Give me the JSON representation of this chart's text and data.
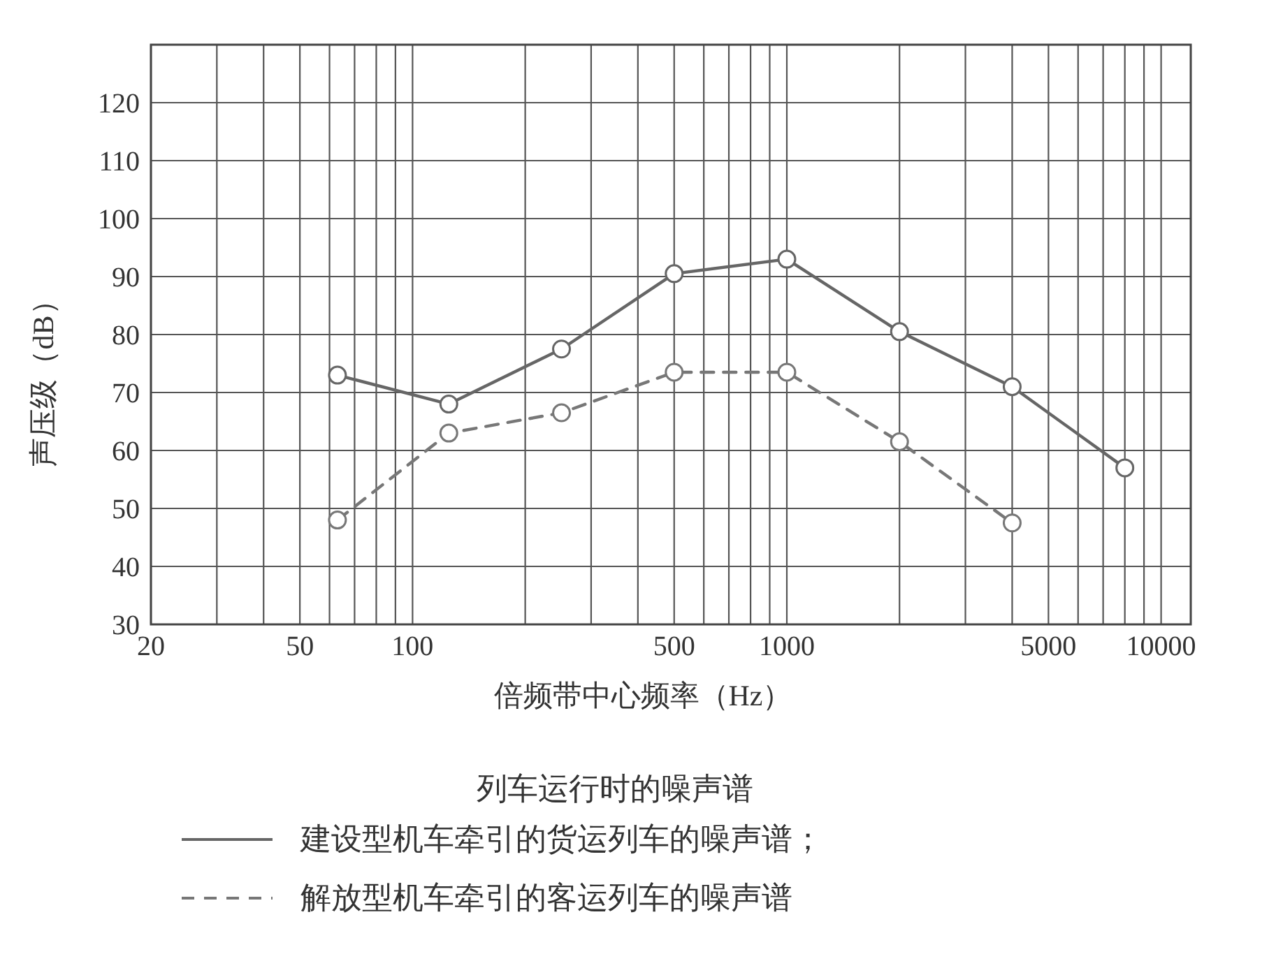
{
  "chart_data": {
    "type": "line",
    "title": "列车运行时的噪声谱",
    "xlabel": "倍频带中心频率（Hz）",
    "ylabel": "声压级（dB）",
    "x": [
      63,
      125,
      250,
      500,
      1000,
      2000,
      4000,
      8000
    ],
    "series": [
      {
        "name": "建设型机车牵引的货运列车的噪声谱；",
        "color": "#666666",
        "line_style": "solid",
        "values": [
          73,
          68,
          77.5,
          90.5,
          93,
          80.5,
          71,
          57
        ]
      },
      {
        "name": "解放型机车牵引的客运列车的噪声谱",
        "color": "#777777",
        "line_style": "dashed",
        "values": [
          48,
          63,
          66.5,
          73.5,
          73.5,
          61.5,
          47.5,
          null
        ]
      }
    ],
    "log": "x",
    "xlim": [
      20,
      12000
    ],
    "xticks": [
      20,
      {
        "value": 30,
        "label": null
      },
      {
        "value": 40,
        "label": null
      },
      50,
      {
        "value": 60,
        "label": null
      },
      {
        "value": 70,
        "label": null
      },
      {
        "value": 80,
        "label": null
      },
      {
        "value": 90,
        "label": null
      },
      100,
      {
        "value": 200,
        "label": null
      },
      {
        "value": 300,
        "label": null
      },
      {
        "value": 400,
        "label": null
      },
      500,
      {
        "value": 600,
        "label": null
      },
      {
        "value": 700,
        "label": null
      },
      {
        "value": 800,
        "label": null
      },
      {
        "value": 900,
        "label": null
      },
      1000,
      {
        "value": 2000,
        "label": null
      },
      {
        "value": 3000,
        "label": null
      },
      {
        "value": 4000,
        "label": null
      },
      5000,
      {
        "value": 6000,
        "label": null
      },
      {
        "value": 7000,
        "label": null
      },
      {
        "value": 8000,
        "label": null
      },
      {
        "value": 9000,
        "label": null
      },
      10000
    ],
    "ylim": [
      30,
      130
    ],
    "yticks": [
      30,
      40,
      50,
      60,
      70,
      80,
      90,
      100,
      110,
      120
    ],
    "grid": true,
    "marker": "circle",
    "legend": "bottom"
  }
}
